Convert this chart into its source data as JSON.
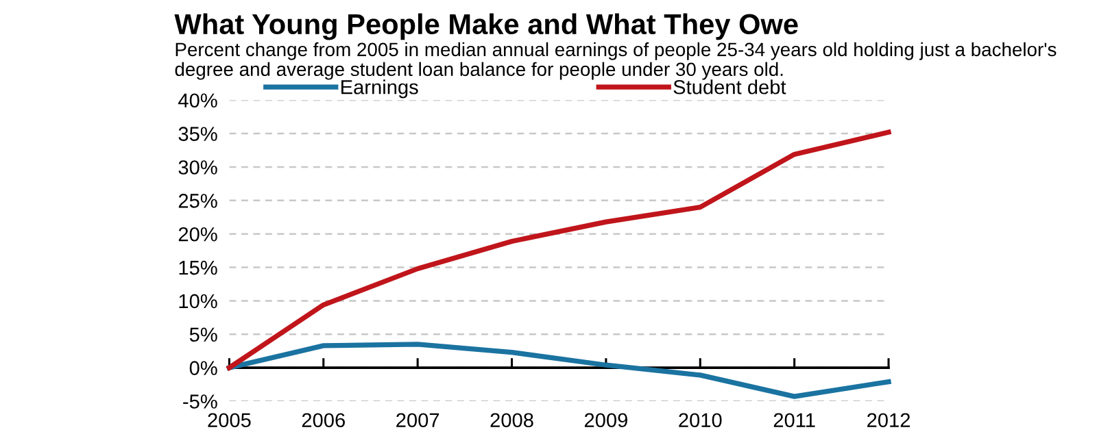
{
  "chart_data": {
    "type": "line",
    "title": "What Young People Make and What They Owe",
    "subtitle": "Percent change from 2005 in median annual earnings of people 25-34 years old holding just a bachelor's degree and average student loan balance for people under 30 years old.",
    "x": [
      2005,
      2006,
      2007,
      2008,
      2009,
      2010,
      2011,
      2012
    ],
    "series": [
      {
        "name": "Earnings",
        "color": "#1a73a0",
        "values": [
          0,
          3.3,
          3.5,
          2.3,
          0.4,
          -1.1,
          -4.3,
          -2.1
        ]
      },
      {
        "name": "Student debt",
        "color": "#c0151b",
        "values": [
          0,
          9.4,
          14.8,
          18.9,
          21.8,
          24.0,
          31.9,
          35.2
        ]
      }
    ],
    "xlim": [
      2005,
      2012
    ],
    "xticks": [
      2005,
      2006,
      2007,
      2008,
      2009,
      2010,
      2011,
      2012
    ],
    "ylim": [
      -5,
      40
    ],
    "yticks": [
      {
        "value": -5,
        "label": "-5%"
      },
      {
        "value": 0,
        "label": "0%"
      },
      {
        "value": 5,
        "label": "5%"
      },
      {
        "value": 10,
        "label": "10%"
      },
      {
        "value": 15,
        "label": "15%"
      },
      {
        "value": 20,
        "label": "20%"
      },
      {
        "value": 25,
        "label": "25%"
      },
      {
        "value": 30,
        "label": "30%"
      },
      {
        "value": 35,
        "label": "35%"
      },
      {
        "value": 40,
        "label": "40%"
      }
    ],
    "grid": "y",
    "legend": "top",
    "line_style": "solid",
    "marker": "none"
  }
}
